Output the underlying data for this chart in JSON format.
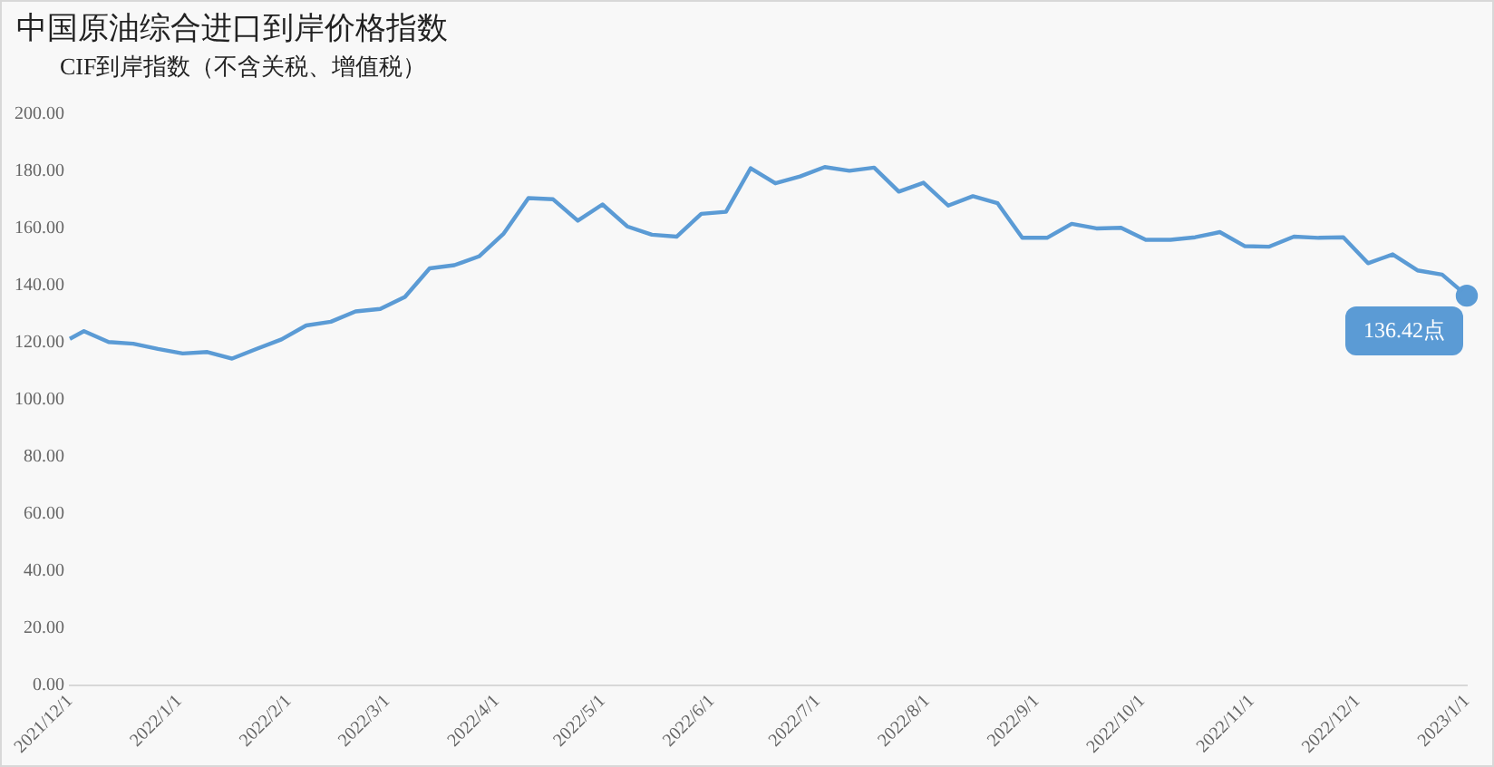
{
  "chart_data": {
    "type": "line",
    "title": "中国原油综合进口到岸价格指数",
    "subtitle": "CIF到岸指数（不含关税、增值税）",
    "x": [
      "2021-12-01",
      "2021-12-05",
      "2021-12-12",
      "2021-12-19",
      "2021-12-26",
      "2022-01-02",
      "2022-01-09",
      "2022-01-16",
      "2022-01-23",
      "2022-01-30",
      "2022-02-06",
      "2022-02-13",
      "2022-02-20",
      "2022-02-27",
      "2022-03-06",
      "2022-03-13",
      "2022-03-20",
      "2022-03-27",
      "2022-04-03",
      "2022-04-10",
      "2022-04-17",
      "2022-04-24",
      "2022-05-01",
      "2022-05-08",
      "2022-05-15",
      "2022-05-22",
      "2022-05-29",
      "2022-06-05",
      "2022-06-12",
      "2022-06-19",
      "2022-06-26",
      "2022-07-03",
      "2022-07-10",
      "2022-07-17",
      "2022-07-24",
      "2022-07-31",
      "2022-08-07",
      "2022-08-14",
      "2022-08-21",
      "2022-08-28",
      "2022-09-04",
      "2022-09-11",
      "2022-09-18",
      "2022-09-25",
      "2022-10-02",
      "2022-10-09",
      "2022-10-16",
      "2022-10-23",
      "2022-10-30",
      "2022-11-06",
      "2022-11-13",
      "2022-11-20",
      "2022-11-27",
      "2022-12-04",
      "2022-12-11",
      "2022-12-18",
      "2022-12-25",
      "2023-01-01"
    ],
    "series": [
      {
        "color": "#5b9bd5",
        "values": [
          121.3,
          124,
          120.2,
          119.6,
          117.8,
          116.2,
          116.7,
          114.4,
          117.8,
          121.1,
          126,
          127.3,
          130.9,
          131.8,
          136,
          146,
          147.1,
          150.2,
          158.2,
          170.6,
          170.2,
          162.7,
          168.4,
          160.7,
          157.8,
          157.1,
          165.1,
          165.8,
          181.1,
          175.8,
          178.2,
          181.5,
          180.2,
          181.3,
          172.9,
          176,
          168,
          171.3,
          168.8,
          156.7,
          156.7,
          161.6,
          160,
          160.2,
          156,
          156,
          156.9,
          158.7,
          153.8,
          153.6,
          157.1,
          156.7,
          156.9,
          147.8,
          150.9,
          145.3,
          143.8,
          136.42
        ],
        "value_labels": [
          null,
          null,
          null,
          null,
          null,
          null,
          null,
          null,
          null,
          null,
          null,
          null,
          null,
          null,
          null,
          null,
          null,
          null,
          null,
          null,
          null,
          null,
          null,
          null,
          null,
          null,
          null,
          null,
          null,
          null,
          null,
          null,
          null,
          null,
          null,
          null,
          null,
          null,
          null,
          null,
          null,
          null,
          null,
          null,
          null,
          null,
          null,
          null,
          null,
          null,
          null,
          null,
          null,
          null,
          null,
          null,
          null,
          "136.42点"
        ]
      }
    ],
    "xlim": [
      "2021-12-01",
      "2023-01-01"
    ],
    "xticks": [
      {
        "value": "2021-12-01",
        "label": "2021/12/1"
      },
      {
        "value": "2022-01-01",
        "label": "2022/1/1"
      },
      {
        "value": "2022-02-01",
        "label": "2022/2/1"
      },
      {
        "value": "2022-03-01",
        "label": "2022/3/1"
      },
      {
        "value": "2022-04-01",
        "label": "2022/4/1"
      },
      {
        "value": "2022-05-01",
        "label": "2022/5/1"
      },
      {
        "value": "2022-06-01",
        "label": "2022/6/1"
      },
      {
        "value": "2022-07-01",
        "label": "2022/7/1"
      },
      {
        "value": "2022-08-01",
        "label": "2022/8/1"
      },
      {
        "value": "2022-09-01",
        "label": "2022/9/1"
      },
      {
        "value": "2022-10-01",
        "label": "2022/10/1"
      },
      {
        "value": "2022-11-01",
        "label": "2022/11/1"
      },
      {
        "value": "2022-12-01",
        "label": "2022/12/1"
      },
      {
        "value": "2023-01-01",
        "label": "2023/1/1"
      }
    ],
    "ylim": [
      0,
      200
    ],
    "yticks": [
      {
        "value": 0,
        "label": "0.00"
      },
      {
        "value": 20,
        "label": "20.00"
      },
      {
        "value": 40,
        "label": "40.00"
      },
      {
        "value": 60,
        "label": "60.00"
      },
      {
        "value": 80,
        "label": "80.00"
      },
      {
        "value": 100,
        "label": "100.00"
      },
      {
        "value": 120,
        "label": "120.00"
      },
      {
        "value": 140,
        "label": "140.00"
      },
      {
        "value": 160,
        "label": "160.00"
      },
      {
        "value": 180,
        "label": "180.00"
      },
      {
        "value": 200,
        "label": "200.00"
      }
    ],
    "grid": false,
    "marker": "none",
    "line_style": "solid"
  }
}
